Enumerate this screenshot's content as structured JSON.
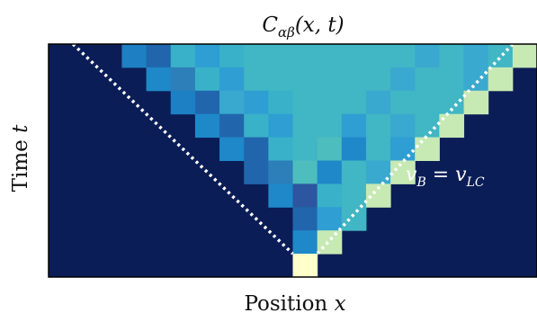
{
  "chart_data": {
    "type": "heatmap",
    "title_parts": {
      "symbol": "C",
      "subscript": "αβ",
      "args": "(x, t)"
    },
    "xlabel_parts": {
      "text": "Position",
      "var": "x"
    },
    "ylabel_parts": {
      "text": "Time",
      "var": "t"
    },
    "annotation": {
      "left": "v",
      "left_sub": "B",
      "eq": " = ",
      "right": "v",
      "right_sub": "LC"
    },
    "n_cols": 20,
    "n_rows": 10,
    "source_column": 10,
    "background_color": "#0b1d56",
    "lightcone_line_color": "#ffffff",
    "cells": [
      [
        "",
        "",
        "",
        "#1e7fc2",
        "#2166ac",
        "#39b1c9",
        "#2f9ed3",
        "#39b1c9",
        "#41b6c4",
        "#41b6c4",
        "#41b6c4",
        "#41b6c4",
        "#41b6c4",
        "#41b6c4",
        "#41b6c4",
        "#3aa9cf",
        "#41b6c4",
        "#3aa9cf",
        "#41b6c4",
        "#c7e9b4"
      ],
      [
        "",
        "",
        "",
        "",
        "#1e88c9",
        "#2c7fb8",
        "#39b1c9",
        "#2f9ed3",
        "#41b6c4",
        "#41b6c4",
        "#41b6c4",
        "#41b6c4",
        "#41b6c4",
        "#41b6c4",
        "#3aa9cf",
        "#41b6c4",
        "#41b6c4",
        "#3aa9cf",
        "#c7e9b4",
        ""
      ],
      [
        "",
        "",
        "",
        "",
        "",
        "#1e80c4",
        "#2166ac",
        "#3aa9cf",
        "#2f9ed3",
        "#39b1c9",
        "#41b6c4",
        "#41b6c4",
        "#41b6c4",
        "#3aa9cf",
        "#41b6c4",
        "#41b6c4",
        "#41b6c4",
        "#c7e9b4",
        "",
        ""
      ],
      [
        "",
        "",
        "",
        "",
        "",
        "",
        "#1e88c9",
        "#2166ac",
        "#39b1c9",
        "#2f9ed3",
        "#41b6c4",
        "#41b6c4",
        "#2f9ed3",
        "#41b6c4",
        "#3aa9cf",
        "#41b6c4",
        "#c7e9b4",
        "",
        "",
        ""
      ],
      [
        "",
        "",
        "",
        "",
        "",
        "",
        "",
        "#1e88c9",
        "#2166ac",
        "#39b1c9",
        "#41b6c4",
        "#4dbdbe",
        "#1e88c9",
        "#41b6c4",
        "#2f9ed3",
        "#c7e9b4",
        "",
        "",
        "",
        ""
      ],
      [
        "",
        "",
        "",
        "",
        "",
        "",
        "",
        "",
        "#2166ac",
        "#2c7fb8",
        "#4dbdbe",
        "#1e88c9",
        "#41b6c4",
        "#3aa9cf",
        "#c7e9b4",
        "",
        "",
        "",
        "",
        ""
      ],
      [
        "",
        "",
        "",
        "",
        "",
        "",
        "",
        "",
        "",
        "#1e88c9",
        "#2c56a0",
        "#39b1c9",
        "#41b6c4",
        "#c7e9b4",
        "",
        "",
        "",
        "",
        "",
        ""
      ],
      [
        "",
        "",
        "",
        "",
        "",
        "",
        "",
        "",
        "",
        "",
        "#2166ac",
        "#2f9ed3",
        "#41b6c4",
        "",
        "",
        "",
        "",
        "",
        "",
        ""
      ],
      [
        "",
        "",
        "",
        "",
        "",
        "",
        "",
        "",
        "",
        "",
        "#1e88c9",
        "#c7e9b4",
        "",
        "",
        "",
        "",
        "",
        "",
        "",
        ""
      ],
      [
        "",
        "",
        "",
        "",
        "",
        "",
        "",
        "",
        "",
        "",
        "#ffffcc",
        "",
        "",
        "",
        "",
        "",
        "",
        "",
        "",
        ""
      ]
    ]
  }
}
